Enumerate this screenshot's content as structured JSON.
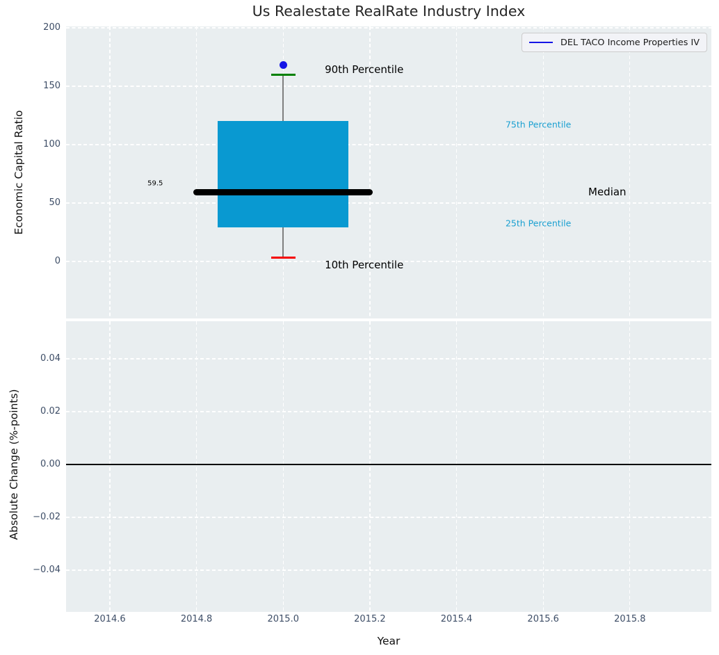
{
  "colors": {
    "axes_background": "#e9eef0",
    "grid": "#ffffff",
    "tick_label": "#3d4d66",
    "box_fill": "#0999d1",
    "median_line": "#000000",
    "whisker": "#7f7f7f",
    "cap_90th": "#008000",
    "cap_10th": "#f50000",
    "company_marker": "#1515e6",
    "percentile_label": "#1ba0d1"
  },
  "chart_data": {
    "type": "boxplot",
    "title": "Us Realestate RealRate Industry Index",
    "xlabel": "Year",
    "xlim": [
      2014.499,
      2015.988
    ],
    "x_ticks": [
      {
        "v": 2014.6,
        "label": "2014.6"
      },
      {
        "v": 2014.8,
        "label": "2014.8"
      },
      {
        "v": 2015.0,
        "label": "2015.0"
      },
      {
        "v": 2015.2,
        "label": "2015.2"
      },
      {
        "v": 2015.4,
        "label": "2015.4"
      },
      {
        "v": 2015.6,
        "label": "2015.6"
      },
      {
        "v": 2015.8,
        "label": "2015.8"
      }
    ],
    "legend": {
      "position": "upper right",
      "entries": [
        {
          "label": "DEL TACO Income Properties IV",
          "color": "#1515e6",
          "style": "line"
        }
      ]
    },
    "panels": [
      {
        "id": "top",
        "ylabel": "Economic Capital Ratio",
        "ylim": [
          -48.8,
          201.2
        ],
        "y_ticks": [
          {
            "v": 0,
            "label": "0"
          },
          {
            "v": 50,
            "label": "50"
          },
          {
            "v": 100,
            "label": "100"
          },
          {
            "v": 150,
            "label": "150"
          },
          {
            "v": 200,
            "label": "200"
          }
        ],
        "box_series": {
          "x": 2015.0,
          "p10": 3.5,
          "p25": 29,
          "median": 59.5,
          "p75": 120,
          "p90": 160,
          "company_value": 168,
          "box_half_width": 0.151,
          "median_line_half_width": 0.207,
          "cap_half_width": 0.028
        },
        "annotations": [
          {
            "slug": "90th-percentile",
            "text": "90th Percentile",
            "x": 2015.096,
            "y": 164.5,
            "color": "#000000",
            "size": 15
          },
          {
            "slug": "10th-percentile",
            "text": "10th Percentile",
            "x": 2015.096,
            "y": -3.0,
            "color": "#000000",
            "size": 15
          },
          {
            "slug": "75th-percentile",
            "text": "75th Percentile",
            "x": 2015.513,
            "y": 117.0,
            "color": "#1ba0d1",
            "size": 12.5
          },
          {
            "slug": "25th-percentile",
            "text": "25th Percentile",
            "x": 2015.513,
            "y": 33.0,
            "color": "#1ba0d1",
            "size": 12.5
          },
          {
            "slug": "median",
            "text": "Median",
            "x": 2015.704,
            "y": 59.5,
            "color": "#000000",
            "size": 15
          },
          {
            "slug": "median-value",
            "text": "59.5",
            "x": 2014.687,
            "y": 66.5,
            "color": "#000000",
            "size": 10
          }
        ]
      },
      {
        "id": "bottom",
        "ylabel": "Absolute Change (%-points)",
        "ylim": [
          -0.0558,
          0.0542
        ],
        "y_ticks": [
          {
            "v": 0.04,
            "label": "0.04"
          },
          {
            "v": 0.02,
            "label": "0.02"
          },
          {
            "v": 0.0,
            "label": "0.00"
          },
          {
            "v": -0.02,
            "label": "−0.02"
          },
          {
            "v": -0.04,
            "label": "−0.04"
          }
        ],
        "zero_line": 0.0
      }
    ]
  }
}
